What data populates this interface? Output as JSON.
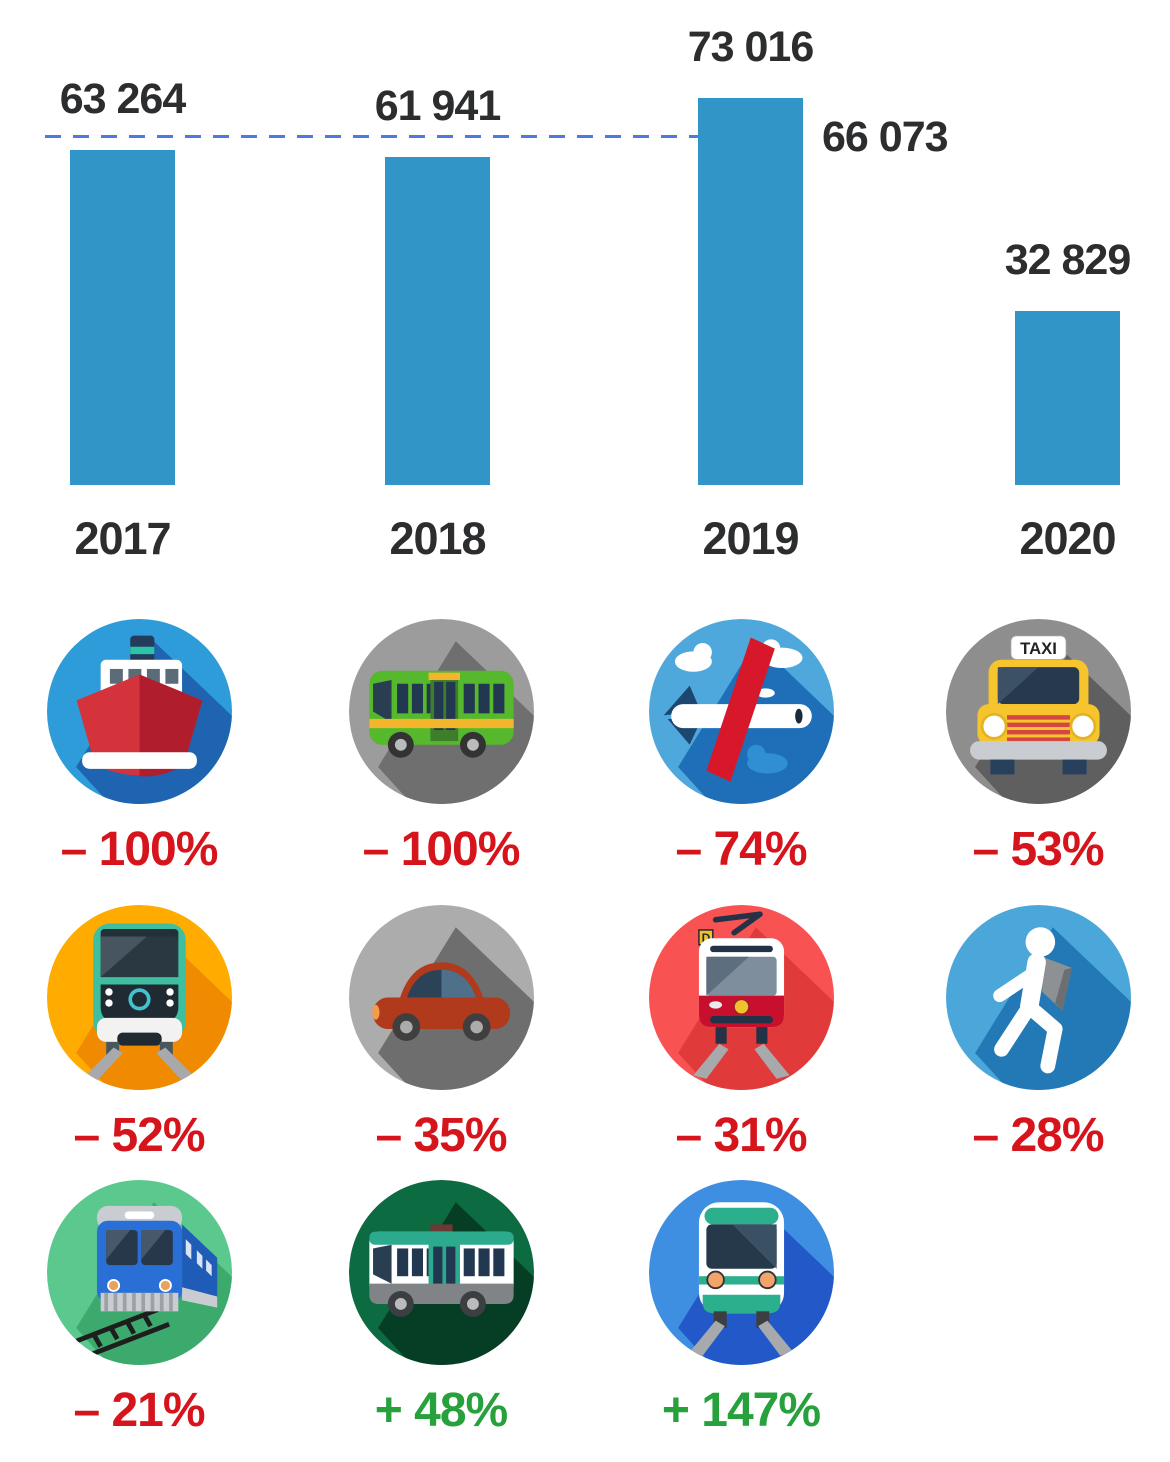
{
  "colors": {
    "text": "#2b2d2e",
    "negative": "#d6141b",
    "positive": "#27a13c"
  },
  "chart_data": {
    "type": "bar",
    "title": "",
    "xlabel": "",
    "ylabel": "",
    "categories": [
      "2017",
      "2018",
      "2019",
      "2020"
    ],
    "values": [
      63264,
      61941,
      73016,
      32829
    ],
    "value_labels": [
      "63 264",
      "61 941",
      "73 016",
      "32 829"
    ],
    "bar_color": "#3195c8",
    "reference_line": {
      "value": 66073,
      "label": "66 073",
      "style": "dashed",
      "color": "#4a7be0"
    },
    "ylim": [
      0,
      73016
    ],
    "grid": false,
    "legend": false
  },
  "modes": [
    {
      "name": "boat",
      "label": "– 100%",
      "direction": "down",
      "circle_color": "#2d9cd8",
      "shadow_color": "#1e64b0"
    },
    {
      "name": "bus",
      "label": "– 100%",
      "direction": "down",
      "circle_color": "#9c9c9c",
      "shadow_color": "#6f6f6f"
    },
    {
      "name": "plane",
      "label": "– 74%",
      "direction": "down",
      "circle_color": "#4fa8dc",
      "shadow_color": "#1e6fb8"
    },
    {
      "name": "taxi",
      "label": "– 53%",
      "direction": "down",
      "circle_color": "#8e8e8e",
      "shadow_color": "#5f5f5f"
    },
    {
      "name": "metro",
      "label": "– 52%",
      "direction": "down",
      "circle_color": "#ffab00",
      "shadow_color": "#f08a00"
    },
    {
      "name": "car",
      "label": "– 35%",
      "direction": "down",
      "circle_color": "#acacac",
      "shadow_color": "#6e6e6e"
    },
    {
      "name": "tram",
      "label": "– 31%",
      "direction": "down",
      "circle_color": "#f95252",
      "shadow_color": "#e03a3a"
    },
    {
      "name": "pedestrian",
      "label": "– 28%",
      "direction": "down",
      "circle_color": "#4ba6d9",
      "shadow_color": "#2379b5"
    },
    {
      "name": "train",
      "label": "– 21%",
      "direction": "down",
      "circle_color": "#5bc98e",
      "shadow_color": "#3baa6c"
    },
    {
      "name": "city-bus",
      "label": "+ 48%",
      "direction": "up",
      "circle_color": "#0c6b40",
      "shadow_color": "#063d25"
    },
    {
      "name": "rer",
      "label": "+ 147%",
      "direction": "up",
      "circle_color": "#3e8ee2",
      "shadow_color": "#2258c8"
    }
  ],
  "icon_text": {
    "taxi_sign": "TAXI",
    "tram_line_badge": "D"
  }
}
